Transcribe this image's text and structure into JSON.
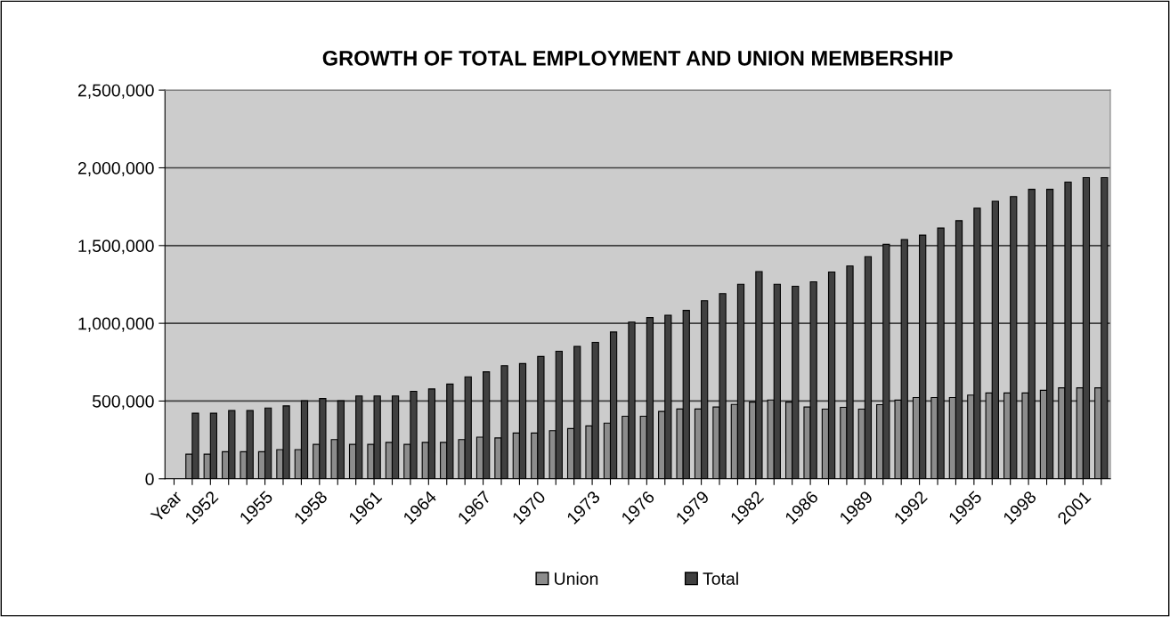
{
  "chart_data": {
    "type": "bar",
    "title": "GROWTH OF TOTAL EMPLOYMENT AND UNION MEMBERSHIP",
    "categories": [
      "Year",
      null,
      "1952",
      null,
      null,
      "1955",
      null,
      null,
      "1958",
      null,
      null,
      "1961",
      null,
      null,
      "1964",
      null,
      null,
      "1967",
      null,
      null,
      "1970",
      null,
      null,
      "1973",
      null,
      null,
      "1976",
      null,
      null,
      "1979",
      null,
      null,
      "1982",
      null,
      null,
      "1986",
      null,
      null,
      "1989",
      null,
      null,
      "1992",
      null,
      null,
      "1995",
      null,
      null,
      "1998",
      null,
      null,
      "2001",
      null
    ],
    "series": [
      {
        "name": "Union",
        "color": "#8c8c8c",
        "values": [
          null,
          158000,
          158000,
          174000,
          174000,
          174000,
          188000,
          188000,
          221000,
          252000,
          221000,
          221000,
          234000,
          221000,
          234000,
          234000,
          252000,
          268000,
          263000,
          294000,
          294000,
          309000,
          323000,
          340000,
          358000,
          402000,
          402000,
          433000,
          449000,
          449000,
          462000,
          478000,
          493000,
          507000,
          493000,
          462000,
          448000,
          460000,
          448000,
          477000,
          506000,
          523000,
          523000,
          523000,
          538000,
          552000,
          552000,
          552000,
          569000,
          585000,
          585000,
          585000
        ]
      },
      {
        "name": "Total",
        "color": "#404040",
        "values": [
          null,
          422000,
          422000,
          439000,
          439000,
          455000,
          469000,
          502000,
          516000,
          502000,
          533000,
          533000,
          533000,
          563000,
          578000,
          609000,
          656000,
          688000,
          727000,
          741000,
          787000,
          820000,
          851000,
          878000,
          944000,
          1008000,
          1037000,
          1052000,
          1083000,
          1145000,
          1191000,
          1251000,
          1333000,
          1251000,
          1238000,
          1267000,
          1330000,
          1369000,
          1429000,
          1508000,
          1538000,
          1567000,
          1613000,
          1660000,
          1740000,
          1785000,
          1815000,
          1862000,
          1862000,
          1908000,
          1937000,
          1937000
        ]
      }
    ],
    "ylim": [
      0,
      2500000
    ],
    "yticks": [
      0,
      {
        "value": 500000,
        "label": "500,000"
      },
      {
        "value": 1000000,
        "label": "1,000,000"
      },
      {
        "value": 1500000,
        "label": "1,500,000"
      },
      {
        "value": 2000000,
        "label": "2,000,000"
      },
      {
        "value": 2500000,
        "label": "2,500,000"
      }
    ],
    "grid": "y",
    "legend": "bottom"
  }
}
